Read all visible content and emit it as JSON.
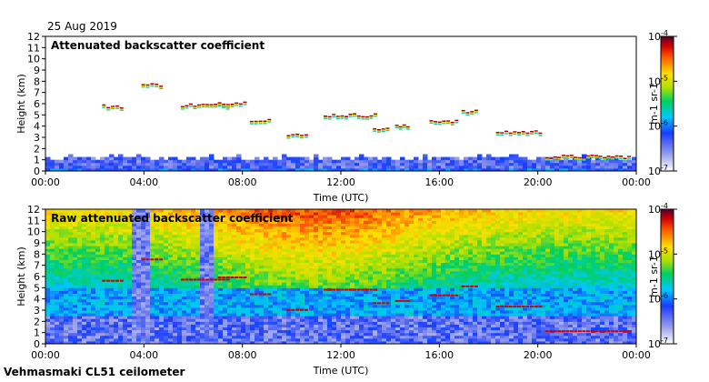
{
  "date": "25 Aug 2019",
  "footer": "Vehmasmaki CL51 ceilometer",
  "chart_data": [
    {
      "type": "heatmap",
      "title": "Attenuated backscatter coefficient",
      "xlabel": "Time (UTC)",
      "ylabel": "Height (km)",
      "xticks": [
        "00:00",
        "04:00",
        "08:00",
        "12:00",
        "16:00",
        "20:00",
        "00:00"
      ],
      "xlim_hours": [
        0,
        24
      ],
      "ylim_km": [
        0,
        12
      ],
      "yticks": [
        0,
        1,
        2,
        3,
        4,
        5,
        6,
        7,
        8,
        9,
        10,
        11,
        12
      ],
      "colorbar": {
        "scale": "log",
        "range": [
          1e-07,
          0.0001
        ],
        "ticks": [
          "10-7",
          "10-6",
          "10-5",
          "10-4"
        ],
        "unit": "m-1 sr-1"
      },
      "features": {
        "boundary_layer_top_km": 1.2,
        "cloud_layers": [
          {
            "t0": 2.3,
            "t1": 3.2,
            "h": 5.7
          },
          {
            "t0": 3.9,
            "t1": 4.8,
            "h": 7.6
          },
          {
            "t0": 5.5,
            "t1": 7.5,
            "h": 5.8
          },
          {
            "t0": 7.0,
            "t1": 8.2,
            "h": 6.0
          },
          {
            "t0": 8.3,
            "t1": 9.2,
            "h": 4.5
          },
          {
            "t0": 9.8,
            "t1": 10.7,
            "h": 3.1
          },
          {
            "t0": 11.3,
            "t1": 13.5,
            "h": 4.9
          },
          {
            "t0": 13.3,
            "t1": 14.0,
            "h": 3.7
          },
          {
            "t0": 14.2,
            "t1": 14.8,
            "h": 3.9
          },
          {
            "t0": 15.6,
            "t1": 16.8,
            "h": 4.4
          },
          {
            "t0": 16.9,
            "t1": 17.6,
            "h": 5.2
          },
          {
            "t0": 18.3,
            "t1": 20.2,
            "h": 3.4
          },
          {
            "t0": 20.3,
            "t1": 23.8,
            "h": 1.2
          }
        ]
      }
    },
    {
      "type": "heatmap",
      "title": "Raw attenuated backscatter coefficient",
      "xlabel": "Time (UTC)",
      "ylabel": "Height (km)",
      "xticks": [
        "00:00",
        "04:00",
        "08:00",
        "12:00",
        "16:00",
        "20:00",
        "00:00"
      ],
      "xlim_hours": [
        0,
        24
      ],
      "ylim_km": [
        0,
        12
      ],
      "yticks": [
        0,
        1,
        2,
        3,
        4,
        5,
        6,
        7,
        8,
        9,
        10,
        11,
        12
      ],
      "colorbar": {
        "scale": "log",
        "range": [
          1e-07,
          0.0001
        ],
        "ticks": [
          "10-7",
          "10-6",
          "10-5",
          "10-4"
        ],
        "unit": "m-1 sr-1"
      }
    }
  ]
}
